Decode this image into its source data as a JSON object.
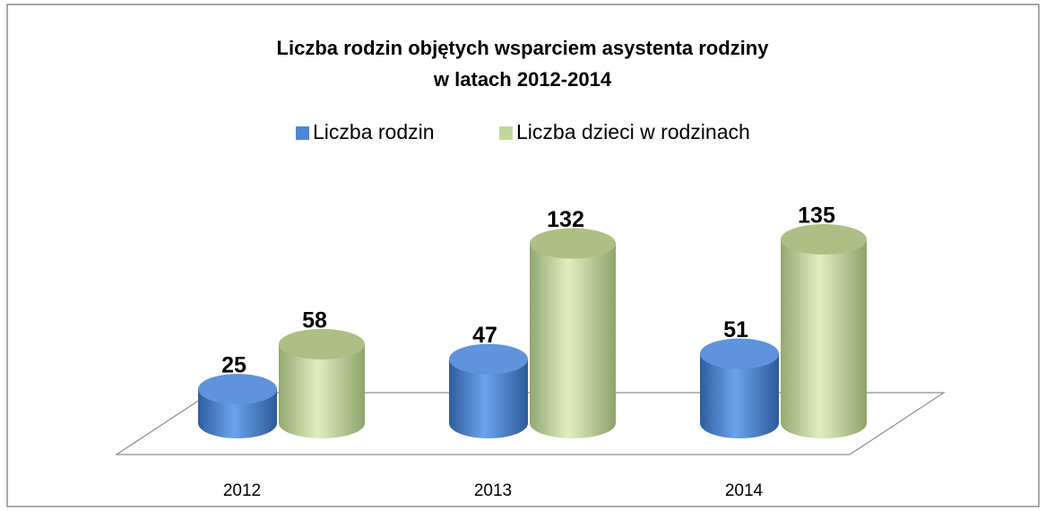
{
  "chart_data": {
    "type": "bar3d",
    "title": [
      "Liczba rodzin objętych wsparciem asystenta rodziny",
      "w latach 2012-2014"
    ],
    "categories": [
      "2012",
      "2013",
      "2014"
    ],
    "series": [
      {
        "name": "Liczba rodzin",
        "color": "#4f86d6",
        "values": [
          25,
          47,
          51
        ]
      },
      {
        "name": "Liczba dzieci w rodzinach",
        "color": "#c3d69b",
        "values": [
          58,
          132,
          135
        ]
      }
    ]
  }
}
